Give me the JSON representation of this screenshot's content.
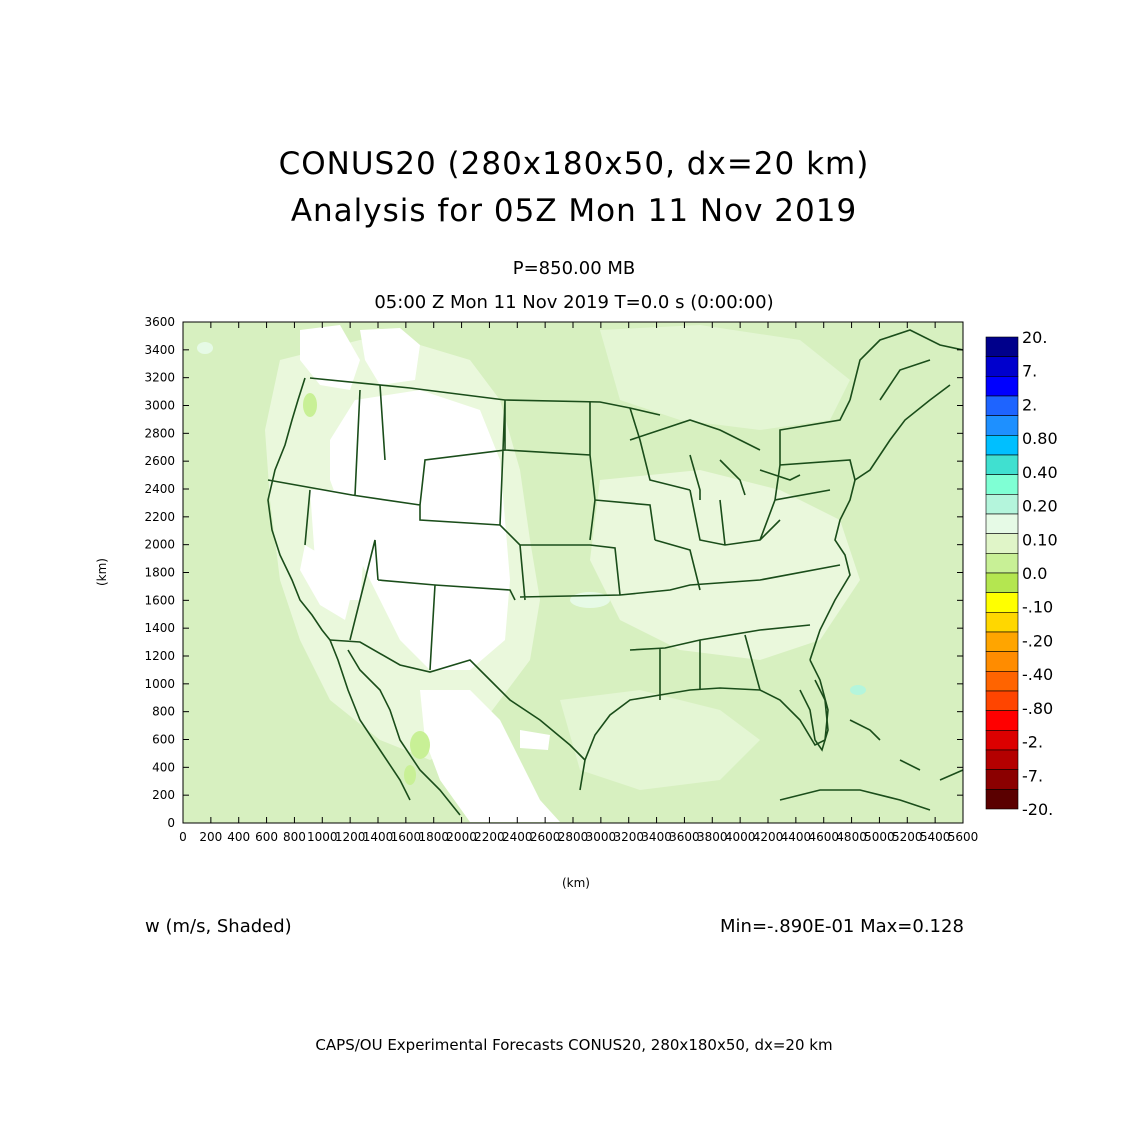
{
  "title_line1": "CONUS20 (280x180x50, dx=20 km)",
  "title_line2": "Analysis for 05Z Mon 11 Nov 2019",
  "level": "P=850.00 MB",
  "time": "05:00 Z Mon 11 Nov 2019    T=0.0 s (0:00:00)",
  "variable": "w (m/s, Shaded)",
  "minmax": "Min=-.890E-01 Max=0.128",
  "footer": "CAPS/OU Experimental Forecasts  CONUS20, 280x180x50, dx=20 km",
  "x_axis": {
    "label": "(km)",
    "ticks": [
      "0",
      "200",
      "400",
      "600",
      "800",
      "1000",
      "1200",
      "1400",
      "1600",
      "1800",
      "2000",
      "2200",
      "2400",
      "2600",
      "2800",
      "3000",
      "3200",
      "3400",
      "3600",
      "3800",
      "4000",
      "4200",
      "4400",
      "4600",
      "4800",
      "5000",
      "5200",
      "5400",
      "5600"
    ]
  },
  "y_axis": {
    "label": "(km)",
    "ticks": [
      "0",
      "200",
      "400",
      "600",
      "800",
      "1000",
      "1200",
      "1400",
      "1600",
      "1800",
      "2000",
      "2200",
      "2400",
      "2600",
      "2800",
      "3000",
      "3200",
      "3400",
      "3600"
    ]
  },
  "colorbar": {
    "labels_top_to_bottom": [
      "20.",
      "7.",
      "2.",
      "0.80",
      "0.40",
      "0.20",
      "0.10",
      "0.0",
      "-.10",
      "-.20",
      "-.40",
      "-.80",
      "-2.",
      "-7.",
      "-20."
    ],
    "colors_top_to_bottom": [
      "#00008b",
      "#0000cd",
      "#0000ff",
      "#1e64ff",
      "#1e90ff",
      "#00bfff",
      "#40e0d0",
      "#7fffd4",
      "#b4f5dc",
      "#e6fae6",
      "#e0f5c8",
      "#c8f096",
      "#b4e650",
      "#ffff00",
      "#ffd700",
      "#ffa500",
      "#ff8c00",
      "#ff6400",
      "#ff4500",
      "#ff0000",
      "#dc0000",
      "#b40000",
      "#8b0000",
      "#5a0000"
    ]
  },
  "colors": {
    "field_background": "#d7f0c0",
    "field_light": "#eaf8dc",
    "field_white": "#ffffff",
    "boundary": "#1a4d1a"
  }
}
